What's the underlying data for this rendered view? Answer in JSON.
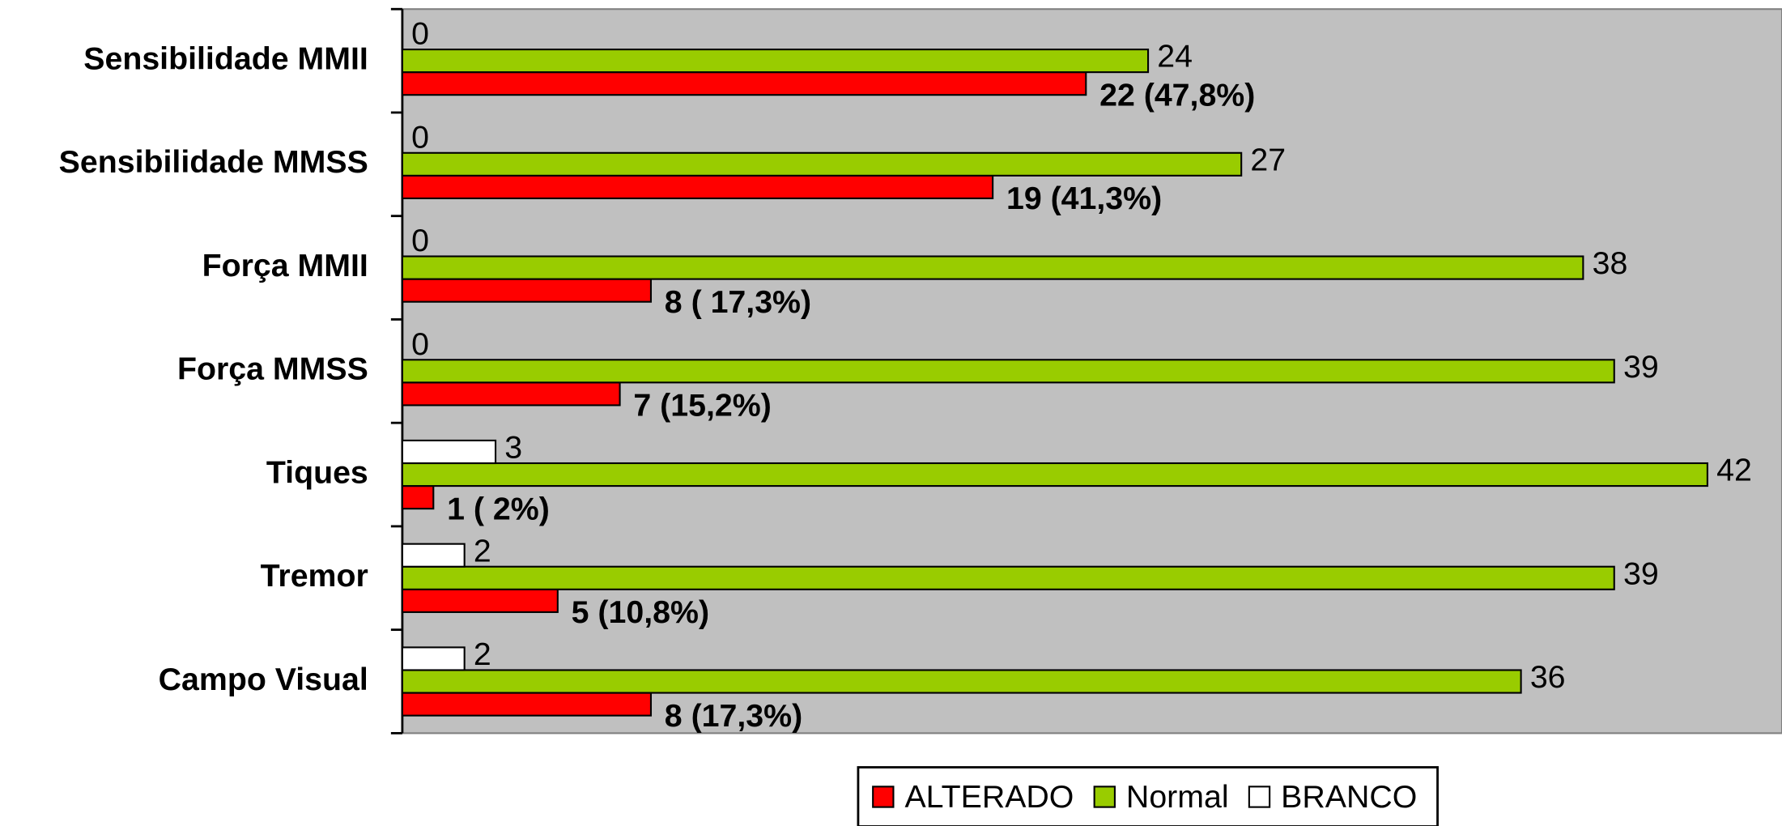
{
  "chart_data": {
    "type": "hbar",
    "categories": [
      "Sensibilidade MMII",
      "Sensibilidade MMSS",
      "Força MMII",
      "Força MMSS",
      "Tiques",
      "Tremor",
      "Campo Visual"
    ],
    "series": [
      {
        "name": "ALTERADO",
        "color": "#ff0000",
        "values": [
          22,
          19,
          8,
          7,
          1,
          5,
          8
        ],
        "value_labels": [
          "22 (47,8%)",
          "19 (41,3%)",
          "8 ( 17,3%)",
          "7 (15,2%)",
          "1 ( 2%)",
          "5 (10,8%)",
          "8 (17,3%)"
        ]
      },
      {
        "name": "Normal",
        "color": "#99cc00",
        "values": [
          24,
          27,
          38,
          39,
          42,
          39,
          36
        ]
      },
      {
        "name": "BRANCO",
        "color": "#ffffff",
        "values": [
          0,
          0,
          0,
          0,
          3,
          2,
          2
        ]
      }
    ],
    "xlim": [
      0,
      44.4
    ],
    "legend": "bottom",
    "background": "#c0c0c0"
  }
}
